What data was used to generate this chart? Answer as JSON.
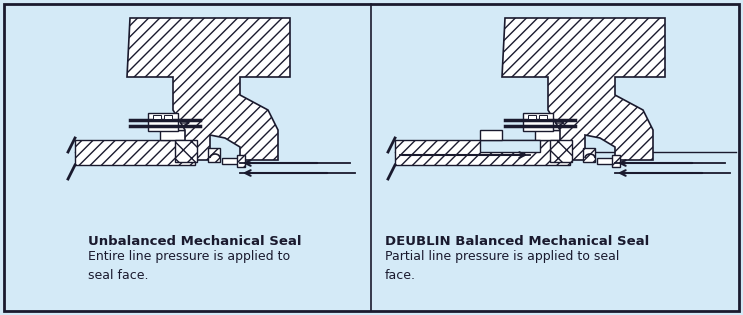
{
  "bg_color": "#d4eaf7",
  "line_color": "#1a1a2e",
  "left_title": "Unbalanced Mechanical Seal",
  "left_body": "Entire line pressure is applied to\nseal face.",
  "right_title": "DEUBLIN Balanced Mechanical Seal",
  "right_body": "Partial line pressure is applied to seal\nface.",
  "title_fontsize": 9.5,
  "body_fontsize": 9.0,
  "fig_width": 7.43,
  "fig_height": 3.15,
  "dpi": 100
}
